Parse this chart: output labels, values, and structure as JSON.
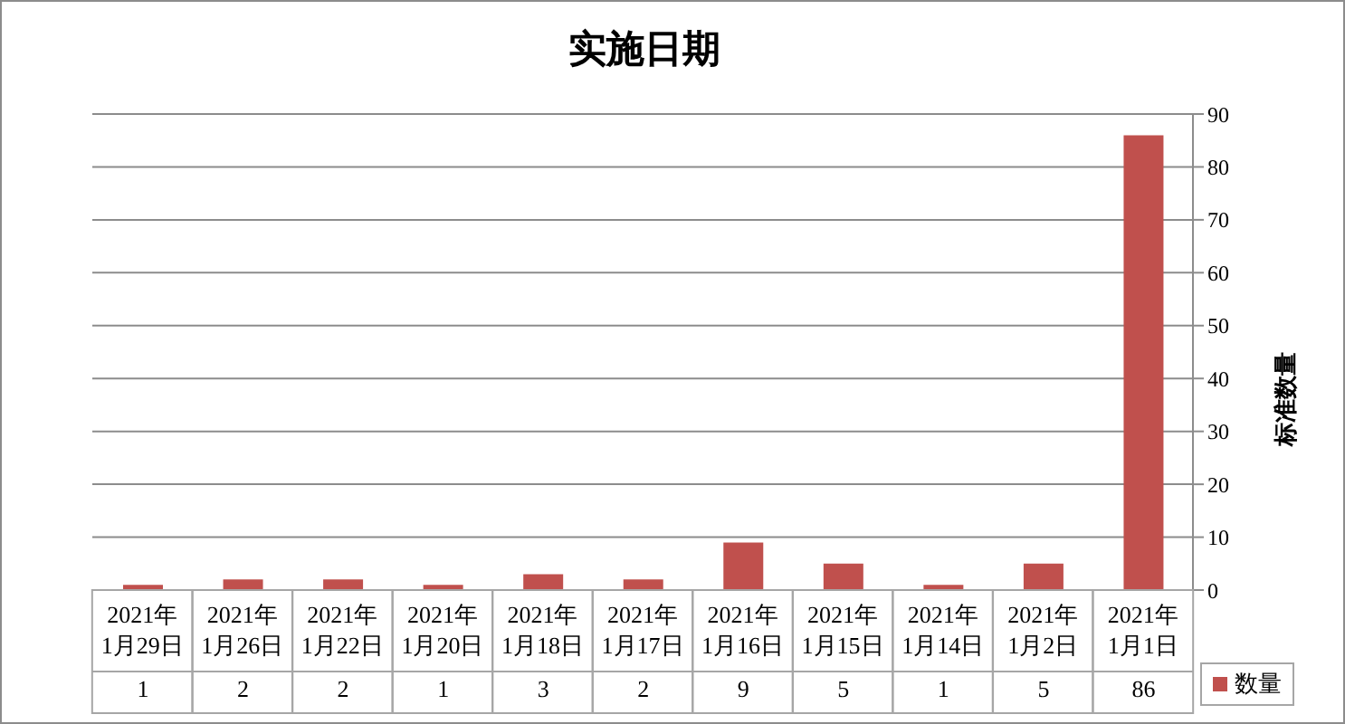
{
  "chart_data": {
    "type": "bar",
    "title": "实施日期",
    "ylabel": "标准数量",
    "categories": [
      "2021年\n1月29日",
      "2021年\n1月26日",
      "2021年\n1月22日",
      "2021年\n1月20日",
      "2021年\n1月18日",
      "2021年\n1月17日",
      "2021年\n1月16日",
      "2021年\n1月15日",
      "2021年\n1月14日",
      "2021年\n1月2日",
      "2021年\n1月1日"
    ],
    "series": [
      {
        "name": "数量",
        "color": "#c0504d",
        "values": [
          1,
          2,
          2,
          1,
          3,
          2,
          9,
          5,
          1,
          5,
          86
        ]
      }
    ],
    "ylim": [
      0,
      90
    ],
    "yticks": [
      0,
      10,
      20,
      30,
      40,
      50,
      60,
      70,
      80,
      90
    ],
    "grid": "y",
    "legend": "bottom right",
    "data_labels": true
  }
}
